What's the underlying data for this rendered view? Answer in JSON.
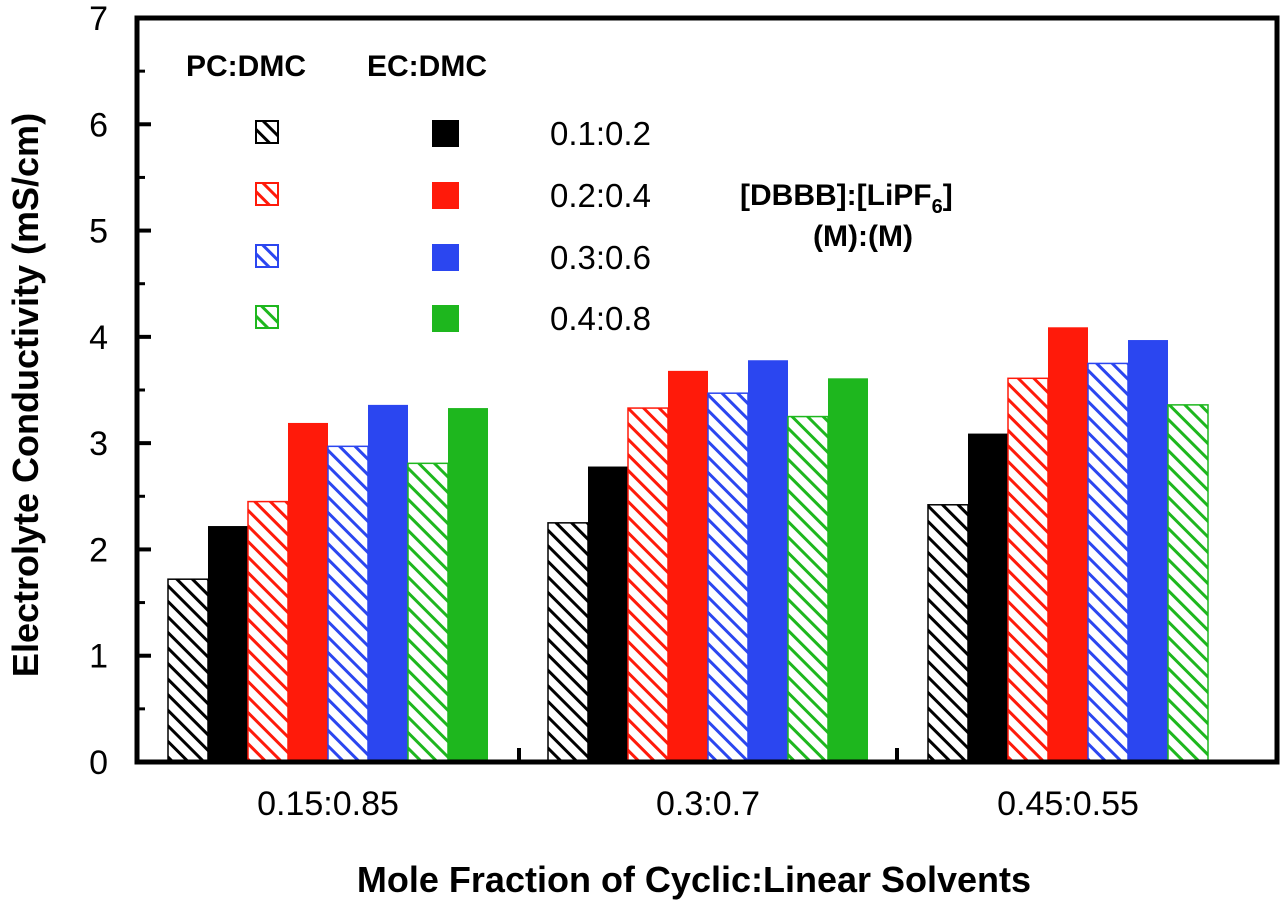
{
  "chart_data": {
    "type": "bar",
    "title": "",
    "xlabel": "Mole Fraction of Cyclic:Linear Solvents",
    "ylabel": "Electrolyte Conductivity (mS/cm)",
    "ylim": [
      0,
      7
    ],
    "yticks": [
      "0",
      "1",
      "2",
      "3",
      "4",
      "5",
      "6",
      "7"
    ],
    "categories": [
      "0.15:0.85",
      "0.3:0.7",
      "0.45:0.55"
    ],
    "legend": {
      "position": "top-left",
      "headers": [
        "PC:DMC",
        "EC:DMC"
      ],
      "ratios": [
        "0.1:0.2",
        "0.2:0.4",
        "0.3:0.6",
        "0.4:0.8"
      ]
    },
    "annotation": {
      "line1_main": "[DBBB]:[LiPF",
      "line1_sub": "6",
      "line1_end": "]",
      "line2": "(M):(M)"
    },
    "colors": {
      "0.1:0.2": "#000000",
      "0.2:0.4": "#ff1a0a",
      "0.3:0.6": "#2b46f0",
      "0.4:0.8": "#1eb71e"
    },
    "series": [
      {
        "name": "PC:DMC 0.1:0.2",
        "solvent": "PC:DMC",
        "ratio": "0.1:0.2",
        "style": "hatched",
        "values": [
          1.72,
          2.25,
          2.42
        ]
      },
      {
        "name": "EC:DMC 0.1:0.2",
        "solvent": "EC:DMC",
        "ratio": "0.1:0.2",
        "style": "solid",
        "values": [
          2.22,
          2.78,
          3.09
        ]
      },
      {
        "name": "PC:DMC 0.2:0.4",
        "solvent": "PC:DMC",
        "ratio": "0.2:0.4",
        "style": "hatched",
        "values": [
          2.45,
          3.33,
          3.61
        ]
      },
      {
        "name": "EC:DMC 0.2:0.4",
        "solvent": "EC:DMC",
        "ratio": "0.2:0.4",
        "style": "solid",
        "values": [
          3.19,
          3.68,
          4.09
        ]
      },
      {
        "name": "PC:DMC 0.3:0.6",
        "solvent": "PC:DMC",
        "ratio": "0.3:0.6",
        "style": "hatched",
        "values": [
          2.97,
          3.47,
          3.75
        ]
      },
      {
        "name": "EC:DMC 0.3:0.6",
        "solvent": "EC:DMC",
        "ratio": "0.3:0.6",
        "style": "solid",
        "values": [
          3.36,
          3.78,
          3.97
        ]
      },
      {
        "name": "PC:DMC 0.4:0.8",
        "solvent": "PC:DMC",
        "ratio": "0.4:0.8",
        "style": "hatched",
        "values": [
          2.81,
          3.25,
          3.36
        ]
      },
      {
        "name": "EC:DMC 0.4:0.8",
        "solvent": "EC:DMC",
        "ratio": "0.4:0.8",
        "style": "solid",
        "values": [
          3.33,
          3.61,
          null
        ]
      }
    ]
  }
}
